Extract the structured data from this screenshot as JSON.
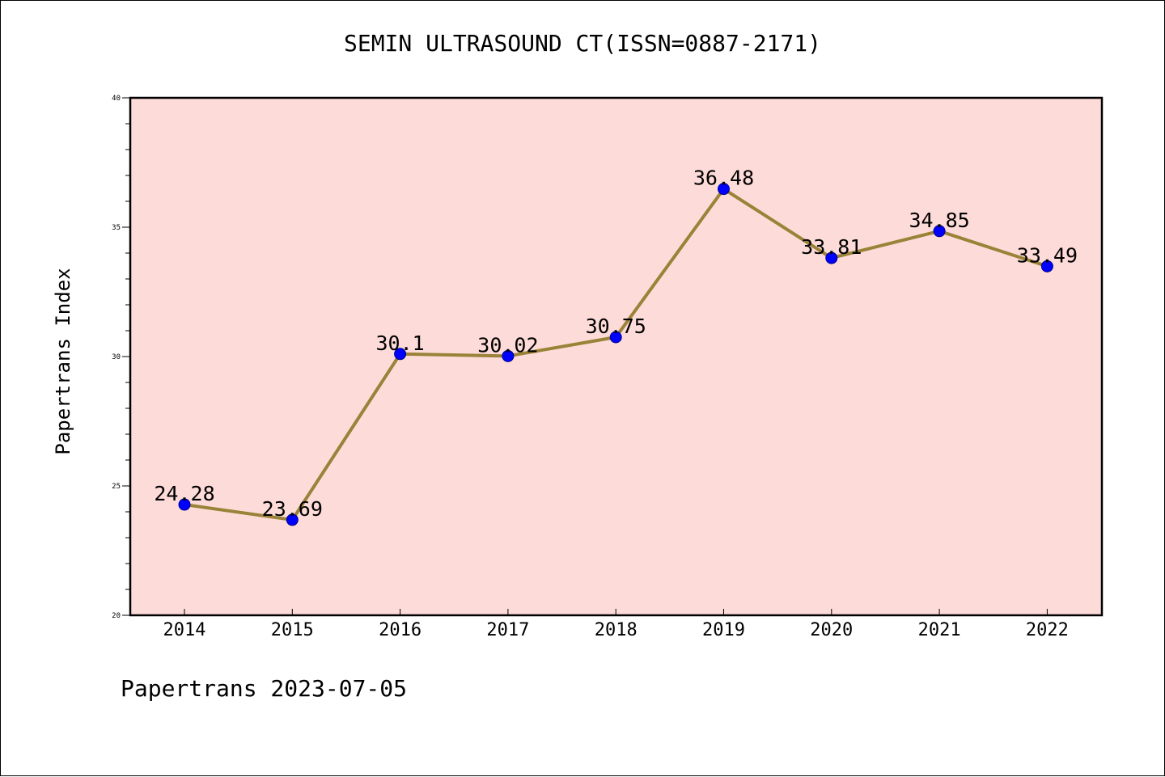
{
  "title": "SEMIN ULTRASOUND CT(ISSN=0887-2171)",
  "footer": "Papertrans 2023-07-05",
  "colors": {
    "plot_background": "#fddbd8",
    "line": "#9a8238",
    "marker": "#0000ff",
    "axis": "#000000"
  },
  "chart_data": {
    "type": "line",
    "ylabel": "Papertrans Index",
    "xlabel": "",
    "ylim": [
      20,
      40
    ],
    "yticks": [
      20,
      25,
      30,
      35,
      40
    ],
    "x": [
      "2014",
      "2015",
      "2016",
      "2017",
      "2018",
      "2019",
      "2020",
      "2021",
      "2022"
    ],
    "series": [
      {
        "values": [
          24.28,
          23.69,
          30.1,
          30.02,
          30.75,
          36.48,
          33.81,
          34.85,
          33.49
        ],
        "labels": [
          "24.28",
          "23.69",
          "30.1",
          "30.02",
          "30.75",
          "36.48",
          "33.81",
          "34.85",
          "33.49"
        ]
      }
    ],
    "grid": false,
    "legend": "none"
  }
}
